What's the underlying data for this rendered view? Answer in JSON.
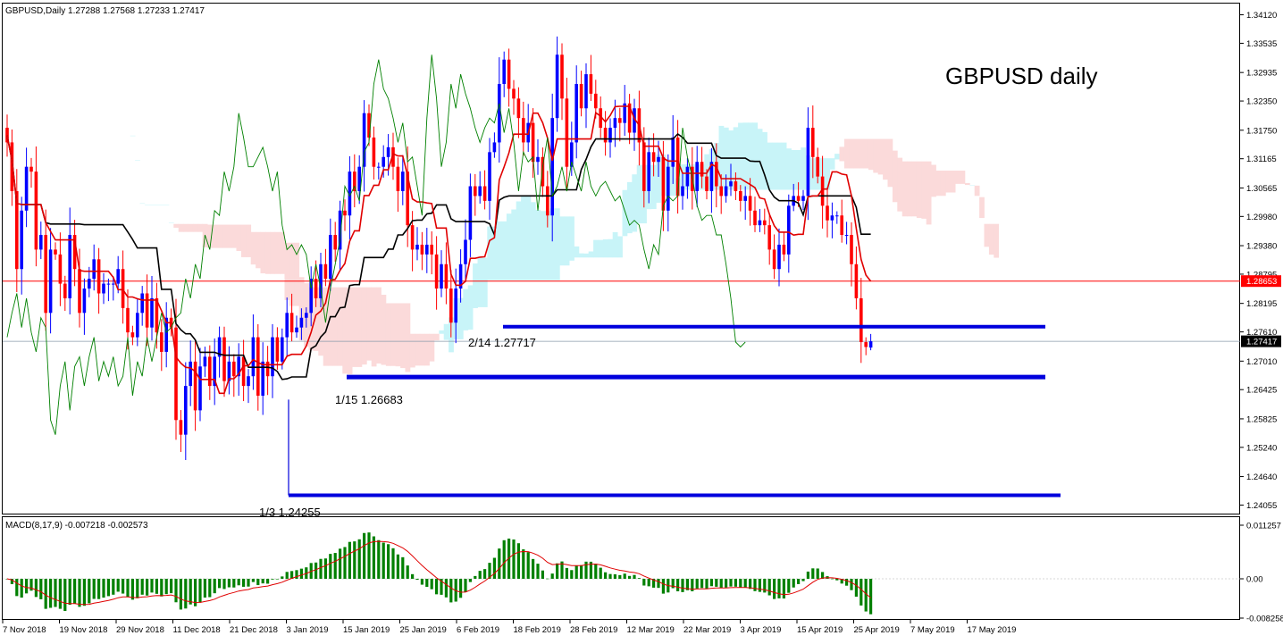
{
  "header": {
    "symbol_info": "GBPUSD,Daily  1.27288 1.27568 1.27233 1.27417",
    "title": "GBPUSD daily"
  },
  "macd": {
    "header": "MACD(8,17,9) -0.007218 -0.002573",
    "ticks": [
      "0.011257",
      "0.00",
      "-0.008258"
    ],
    "tick_values": [
      0.011257,
      0.0,
      -0.008258
    ]
  },
  "price_axis": {
    "ticks": [
      "1.34120",
      "1.33535",
      "1.32935",
      "1.32350",
      "1.31750",
      "1.31165",
      "1.30565",
      "1.29980",
      "1.29380",
      "1.28795",
      "1.28195",
      "1.27610",
      "1.27010",
      "1.26425",
      "1.25825",
      "1.25240",
      "1.24640",
      "1.24055"
    ],
    "tick_values": [
      1.3412,
      1.33535,
      1.32935,
      1.3235,
      1.3175,
      1.31165,
      1.30565,
      1.2998,
      1.2938,
      1.28795,
      1.28195,
      1.2761,
      1.2701,
      1.26425,
      1.25825,
      1.2524,
      1.2464,
      1.24055
    ],
    "red_level_label": "1.28653",
    "red_level_value": 1.28653,
    "current_label": "1.27417",
    "current_value": 1.27417
  },
  "date_axis": {
    "labels": [
      "7 Nov 2018",
      "19 Nov 2018",
      "29 Nov 2018",
      "11 Dec 2018",
      "21 Dec 2018",
      "3 Jan 2019",
      "15 Jan 2019",
      "25 Jan 2019",
      "6 Feb 2019",
      "18 Feb 2019",
      "28 Feb 2019",
      "12 Mar 2019",
      "22 Mar 2019",
      "3 Apr 2019",
      "15 Apr 2019",
      "25 Apr 2019",
      "7 May 2019",
      "17 May 2019"
    ]
  },
  "annotations": {
    "level_2_14": "2/14 1.27717",
    "level_1_15": "1/15 1.26683",
    "level_1_3": "1/3 1.24255"
  },
  "colors": {
    "bull": "#0000ff",
    "bear": "#ff0000",
    "tenkan": "#e00000",
    "kijun": "#000000",
    "chikou": "#008000",
    "kumo_bull": "#c8f4f8",
    "kumo_bear": "#fbdada",
    "support": "#0000dd",
    "macd_hist": "#008000",
    "macd_signal": "#e00000",
    "current_label_bg": "#000000",
    "red_label_bg": "#ff0000"
  },
  "chart_data": {
    "type": "candlestick",
    "symbol": "GBPUSD",
    "timeframe": "Daily",
    "ohlc_last": {
      "open": 1.27288,
      "high": 1.27568,
      "low": 1.27233,
      "close": 1.27417
    },
    "y_range": [
      1.2388,
      1.3435
    ],
    "support_levels": [
      {
        "label": "2/14 1.27717",
        "value": 1.27717
      },
      {
        "label": "1/15 1.26683",
        "value": 1.26683
      },
      {
        "label": "1/3 1.24255",
        "value": 1.24255
      }
    ],
    "horizontal_line": 1.28653,
    "closes": [
      1.315,
      1.305,
      1.289,
      1.301,
      1.31,
      1.309,
      1.293,
      1.296,
      1.28,
      1.293,
      1.292,
      1.286,
      1.283,
      1.296,
      1.289,
      1.28,
      1.285,
      1.287,
      1.291,
      1.284,
      1.286,
      1.286,
      1.286,
      1.289,
      1.281,
      1.276,
      1.275,
      1.28,
      1.284,
      1.277,
      1.283,
      1.276,
      1.272,
      1.279,
      1.277,
      1.258,
      1.255,
      1.265,
      1.27,
      1.26,
      1.269,
      1.271,
      1.265,
      1.271,
      1.275,
      1.266,
      1.27,
      1.267,
      1.271,
      1.265,
      1.267,
      1.275,
      1.263,
      1.27,
      1.267,
      1.275,
      1.27,
      1.275,
      1.28,
      1.276,
      1.277,
      1.279,
      1.28,
      1.287,
      1.283,
      1.29,
      1.287,
      1.296,
      1.293,
      1.301,
      1.3,
      1.309,
      1.305,
      1.31,
      1.321,
      1.316,
      1.31,
      1.31,
      1.312,
      1.314,
      1.31,
      1.305,
      1.309,
      1.298,
      1.293,
      1.294,
      1.292,
      1.294,
      1.292,
      1.285,
      1.29,
      1.285,
      1.278,
      1.285,
      1.29,
      1.295,
      1.306,
      1.304,
      1.306,
      1.303,
      1.313,
      1.315,
      1.327,
      1.332,
      1.326,
      1.324,
      1.32,
      1.315,
      1.319,
      1.311,
      1.312,
      1.306,
      1.3,
      1.32,
      1.333,
      1.324,
      1.31,
      1.315,
      1.327,
      1.322,
      1.329,
      1.325,
      1.322,
      1.318,
      1.315,
      1.318,
      1.32,
      1.319,
      1.323,
      1.317,
      1.322,
      1.315,
      1.305,
      1.313,
      1.311,
      1.312,
      1.301,
      1.31,
      1.316,
      1.304,
      1.306,
      1.31,
      1.305,
      1.311,
      1.308,
      1.305,
      1.311,
      1.306,
      1.304,
      1.306,
      1.307,
      1.305,
      1.303,
      1.304,
      1.301,
      1.298,
      1.299,
      1.298,
      1.293,
      1.289,
      1.294,
      1.292,
      1.302,
      1.304,
      1.303,
      1.304,
      1.318,
      1.312,
      1.308,
      1.302,
      1.299,
      1.3,
      1.3,
      1.296,
      1.296,
      1.29,
      1.283,
      1.274,
      1.273,
      1.274
    ]
  }
}
